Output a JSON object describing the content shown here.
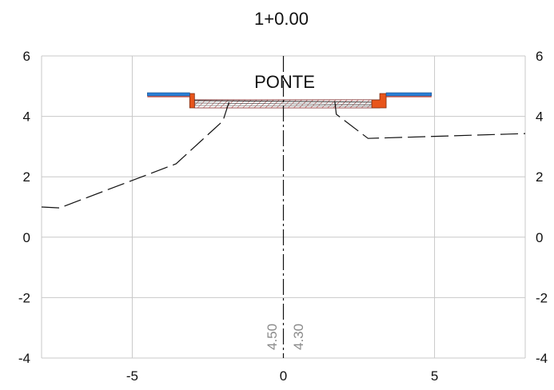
{
  "title": "1+0.00",
  "section_label": "PONTE",
  "x_ticks": [
    "-5",
    "0",
    "5"
  ],
  "y_ticks": [
    "6",
    "4",
    "2",
    "0",
    "-2",
    "-4"
  ],
  "axis_values_vertical": {
    "left": "4.50",
    "right": "4.30"
  },
  "colors": {
    "grid": "#c8c8c8",
    "deck_orange": "#e8551b",
    "kerb_blue": "#2a7fd6",
    "ground": "#111111"
  },
  "chart_data": {
    "type": "line",
    "xlim": [
      -8,
      8
    ],
    "ylim": [
      -4,
      6
    ],
    "x_ticks": [
      -5,
      0,
      5
    ],
    "y_ticks": [
      -4,
      -2,
      0,
      2,
      4,
      6
    ],
    "grid": true,
    "centerline_x": 0,
    "ground_line": {
      "x": [
        -8,
        -7.4,
        -3.55,
        -2,
        -1.8
      ],
      "y": [
        1.0,
        0.97,
        2.43,
        3.85,
        4.47
      ]
    },
    "ground_line_right": {
      "x": [
        1.7,
        1.75,
        2.8,
        8
      ],
      "y": [
        4.5,
        4.07,
        3.27,
        3.43
      ]
    },
    "deck": {
      "left_edge": -3.1,
      "right_edge": 3.4,
      "top": 4.6,
      "bottom": 4.28
    },
    "kerbs": {
      "left": {
        "x": [
          -4.5,
          -3.1
        ],
        "y": 4.73
      },
      "right": {
        "x": [
          3.4,
          4.9
        ],
        "y": 4.73
      }
    }
  }
}
